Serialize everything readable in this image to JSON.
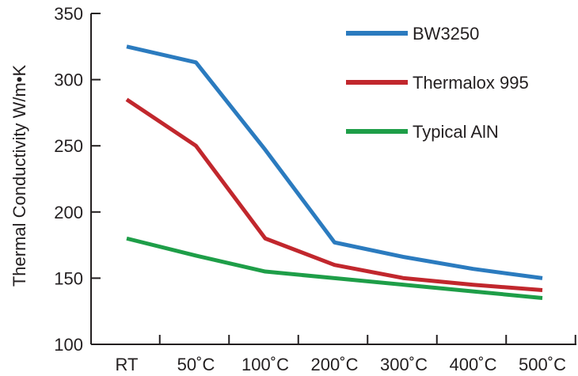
{
  "chart_data": {
    "type": "line",
    "title": "",
    "xlabel": "",
    "ylabel": "Thermal Conductivity W/m•K",
    "categories": [
      "RT",
      "50˚C",
      "100˚C",
      "200˚C",
      "300˚C",
      "400˚C",
      "500˚C"
    ],
    "ylim": [
      100,
      350
    ],
    "yticks": [
      100,
      150,
      200,
      250,
      300,
      350
    ],
    "grid": false,
    "legend_position": "top-right",
    "series": [
      {
        "name": "BW3250",
        "color": "#2b7bbf",
        "values": [
          325,
          313,
          247,
          177,
          166,
          157,
          150
        ]
      },
      {
        "name": "Thermalox 995",
        "color": "#c1272d",
        "values": [
          285,
          250,
          180,
          160,
          150,
          145,
          141
        ]
      },
      {
        "name": "Typical AlN",
        "color": "#1e9e48",
        "values": [
          180,
          167,
          155,
          150,
          145,
          140,
          135
        ]
      }
    ]
  }
}
